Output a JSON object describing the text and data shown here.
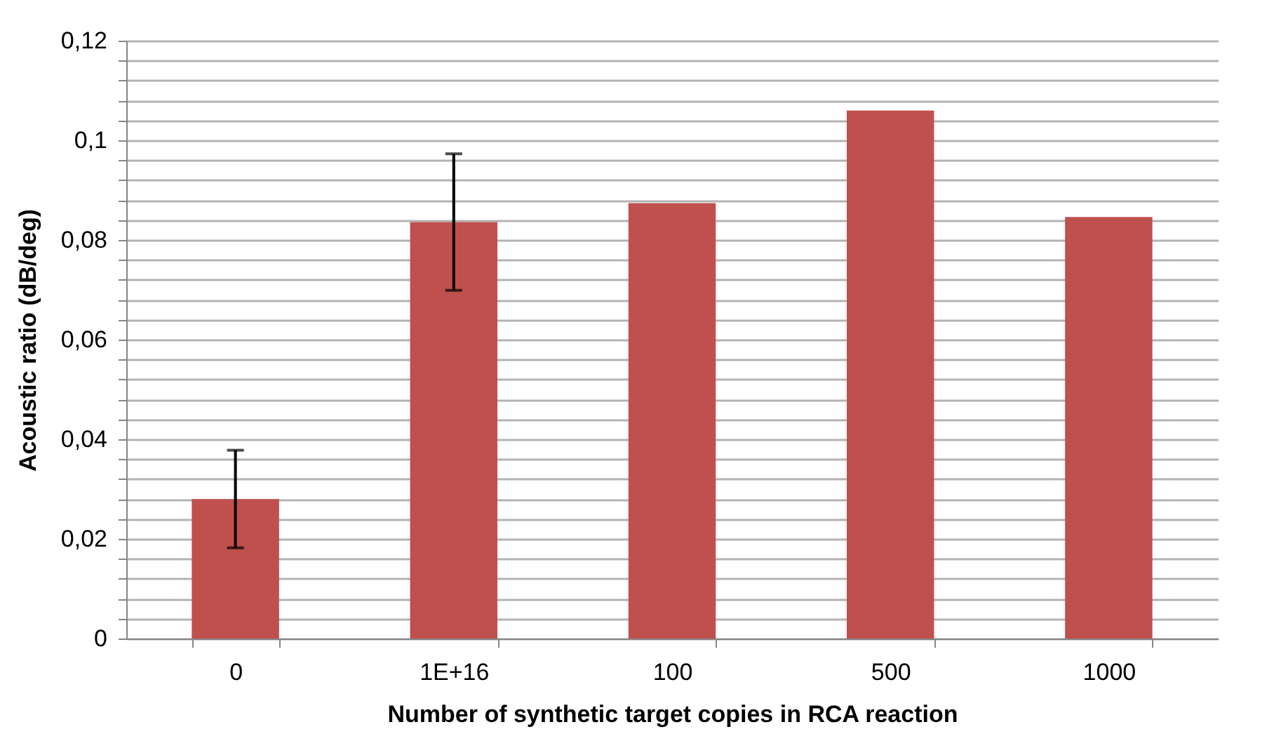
{
  "chart_data": {
    "type": "bar",
    "xlabel": "Number of synthetic target copies in RCA reaction",
    "ylabel": "Acoustic ratio (dB/deg)",
    "categories": [
      "0",
      "1E+16",
      "100",
      "500",
      "1000"
    ],
    "values": [
      0.028,
      0.0836,
      0.0874,
      0.106,
      0.0846
    ],
    "errors": [
      0.0098,
      0.0137,
      null,
      null,
      null
    ],
    "color": "#c0504d",
    "ylim": [
      0,
      0.12
    ],
    "yticks": [
      0,
      {
        "value": 0.004,
        "label": null
      },
      {
        "value": 0.008,
        "label": null
      },
      {
        "value": 0.012,
        "label": null
      },
      {
        "value": 0.016,
        "label": null
      },
      {
        "value": 0.02,
        "label": "0,02"
      },
      {
        "value": 0.024,
        "label": null
      },
      {
        "value": 0.028,
        "label": null
      },
      {
        "value": 0.032,
        "label": null
      },
      {
        "value": 0.036,
        "label": null
      },
      {
        "value": 0.04,
        "label": "0,04"
      },
      {
        "value": 0.044,
        "label": null
      },
      {
        "value": 0.048,
        "label": null
      },
      {
        "value": 0.052,
        "label": null
      },
      {
        "value": 0.056,
        "label": null
      },
      {
        "value": 0.06,
        "label": "0,06"
      },
      {
        "value": 0.064,
        "label": null
      },
      {
        "value": 0.068,
        "label": null
      },
      {
        "value": 0.072,
        "label": null
      },
      {
        "value": 0.076,
        "label": null
      },
      {
        "value": 0.08,
        "label": "0,08"
      },
      {
        "value": 0.084,
        "label": null
      },
      {
        "value": 0.088,
        "label": null
      },
      {
        "value": 0.092,
        "label": null
      },
      {
        "value": 0.096,
        "label": null
      },
      {
        "value": 0.1,
        "label": "0,1"
      },
      {
        "value": 0.104,
        "label": null
      },
      {
        "value": 0.108,
        "label": null
      },
      {
        "value": 0.112,
        "label": null
      },
      {
        "value": 0.116,
        "label": null
      },
      {
        "value": 0.12,
        "label": "0,12"
      }
    ],
    "grid": "y"
  }
}
